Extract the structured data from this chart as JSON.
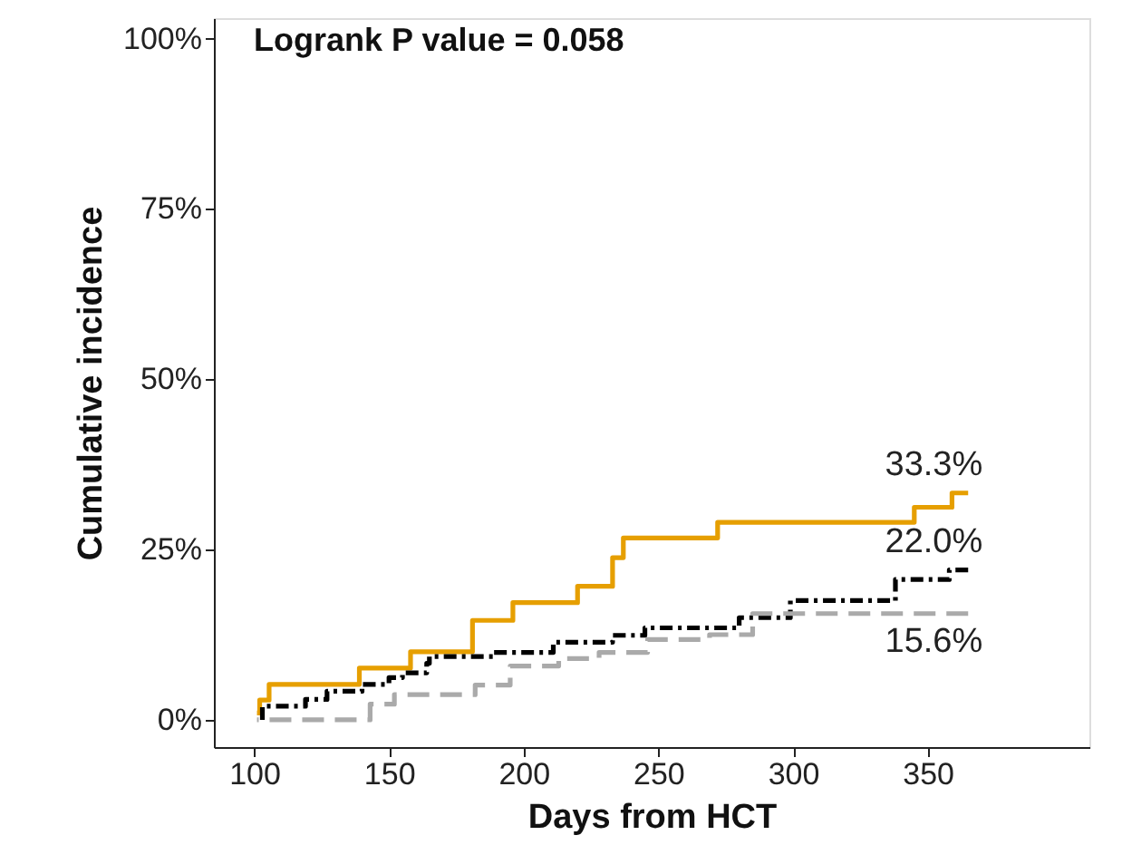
{
  "chart_data": {
    "type": "step",
    "xlabel": "Days from HCT",
    "ylabel": "Cumulative incidence",
    "xlim": [
      85,
      410
    ],
    "xticks": [
      100,
      150,
      200,
      250,
      300,
      350
    ],
    "ylim": [
      -4,
      103
    ],
    "yticks": [
      {
        "value": 0,
        "label": "0%"
      },
      {
        "value": 25,
        "label": "25%"
      },
      {
        "value": 50,
        "label": "50%"
      },
      {
        "value": 75,
        "label": "75%"
      },
      {
        "value": 100,
        "label": "100%"
      }
    ],
    "grid": false,
    "marker": "none",
    "series": [
      {
        "color": "#e69f00",
        "line_style": "solid",
        "x": [
          101,
          102,
          105.5,
          139,
          158,
          181,
          196,
          220,
          233,
          237,
          272,
          345,
          359,
          365
        ],
        "values": [
          1,
          2.9,
          5.2,
          7.6,
          10,
          14.6,
          17.2,
          19.6,
          23.8,
          26.7,
          29,
          31.2,
          33.3,
          33.3
        ],
        "value_labels": [
          null,
          null,
          null,
          null,
          null,
          null,
          null,
          null,
          null,
          null,
          null,
          null,
          null,
          "33.3%"
        ]
      },
      {
        "color": "#000000",
        "line_style": "dashdot",
        "x": [
          101,
          103,
          119,
          127,
          140,
          150,
          155,
          164,
          165,
          189,
          211,
          233,
          245,
          280,
          299,
          338,
          358,
          365
        ],
        "values": [
          0,
          2,
          3,
          4.2,
          5.2,
          6.2,
          6.9,
          8.3,
          9.3,
          9.9,
          11.4,
          12.4,
          13.5,
          15,
          17.5,
          20.6,
          22.0,
          22.0
        ],
        "value_labels": [
          null,
          null,
          null,
          null,
          null,
          null,
          null,
          null,
          null,
          null,
          null,
          null,
          null,
          null,
          null,
          null,
          null,
          "22.0%"
        ]
      },
      {
        "color": "#aaaaaa",
        "line_style": "dashed",
        "x": [
          101,
          143,
          152,
          182,
          195,
          213,
          228,
          246,
          269,
          285,
          365
        ],
        "values": [
          0,
          2.3,
          3.7,
          5.1,
          7.9,
          9,
          9.9,
          11.8,
          12.5,
          15.6,
          15.6
        ],
        "value_labels": [
          null,
          null,
          null,
          null,
          null,
          null,
          null,
          null,
          null,
          null,
          "15.6%"
        ]
      }
    ],
    "annotations": [
      "Logrank P value = 0.058"
    ]
  }
}
